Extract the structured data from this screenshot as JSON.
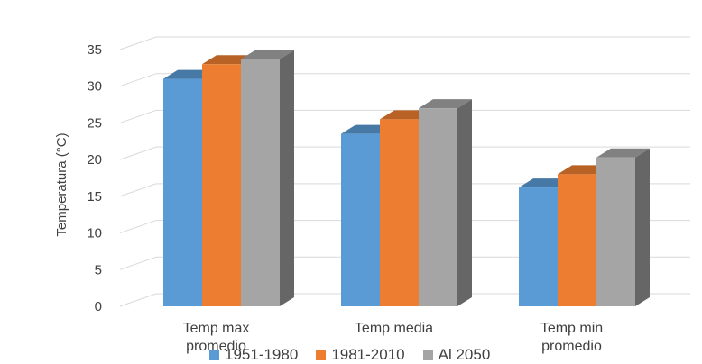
{
  "chart_data": {
    "type": "bar",
    "style": "3d-clustered-column",
    "categories": [
      "Temp max promedio",
      "Temp media",
      "Temp min promedio"
    ],
    "category_lines": [
      [
        "Temp max",
        "promedio"
      ],
      [
        "Temp media"
      ],
      [
        "Temp min",
        "promedio"
      ]
    ],
    "series": [
      {
        "name": "1951-1980",
        "color": "#5b9bd5",
        "values": [
          31.0,
          23.5,
          16.2
        ]
      },
      {
        "name": "1981-2010",
        "color": "#ed7d31",
        "values": [
          33.0,
          25.5,
          18.0
        ]
      },
      {
        "name": "Al 2050",
        "color": "#a5a5a5",
        "values": [
          33.7,
          27.0,
          20.3
        ]
      }
    ],
    "ylabel": "Temperatura (°C)",
    "xlabel": "",
    "title": "",
    "ylim": [
      0,
      35
    ],
    "yticks": [
      0,
      5,
      10,
      15,
      20,
      25,
      30,
      35
    ],
    "grid": true,
    "legend_position": "bottom"
  }
}
